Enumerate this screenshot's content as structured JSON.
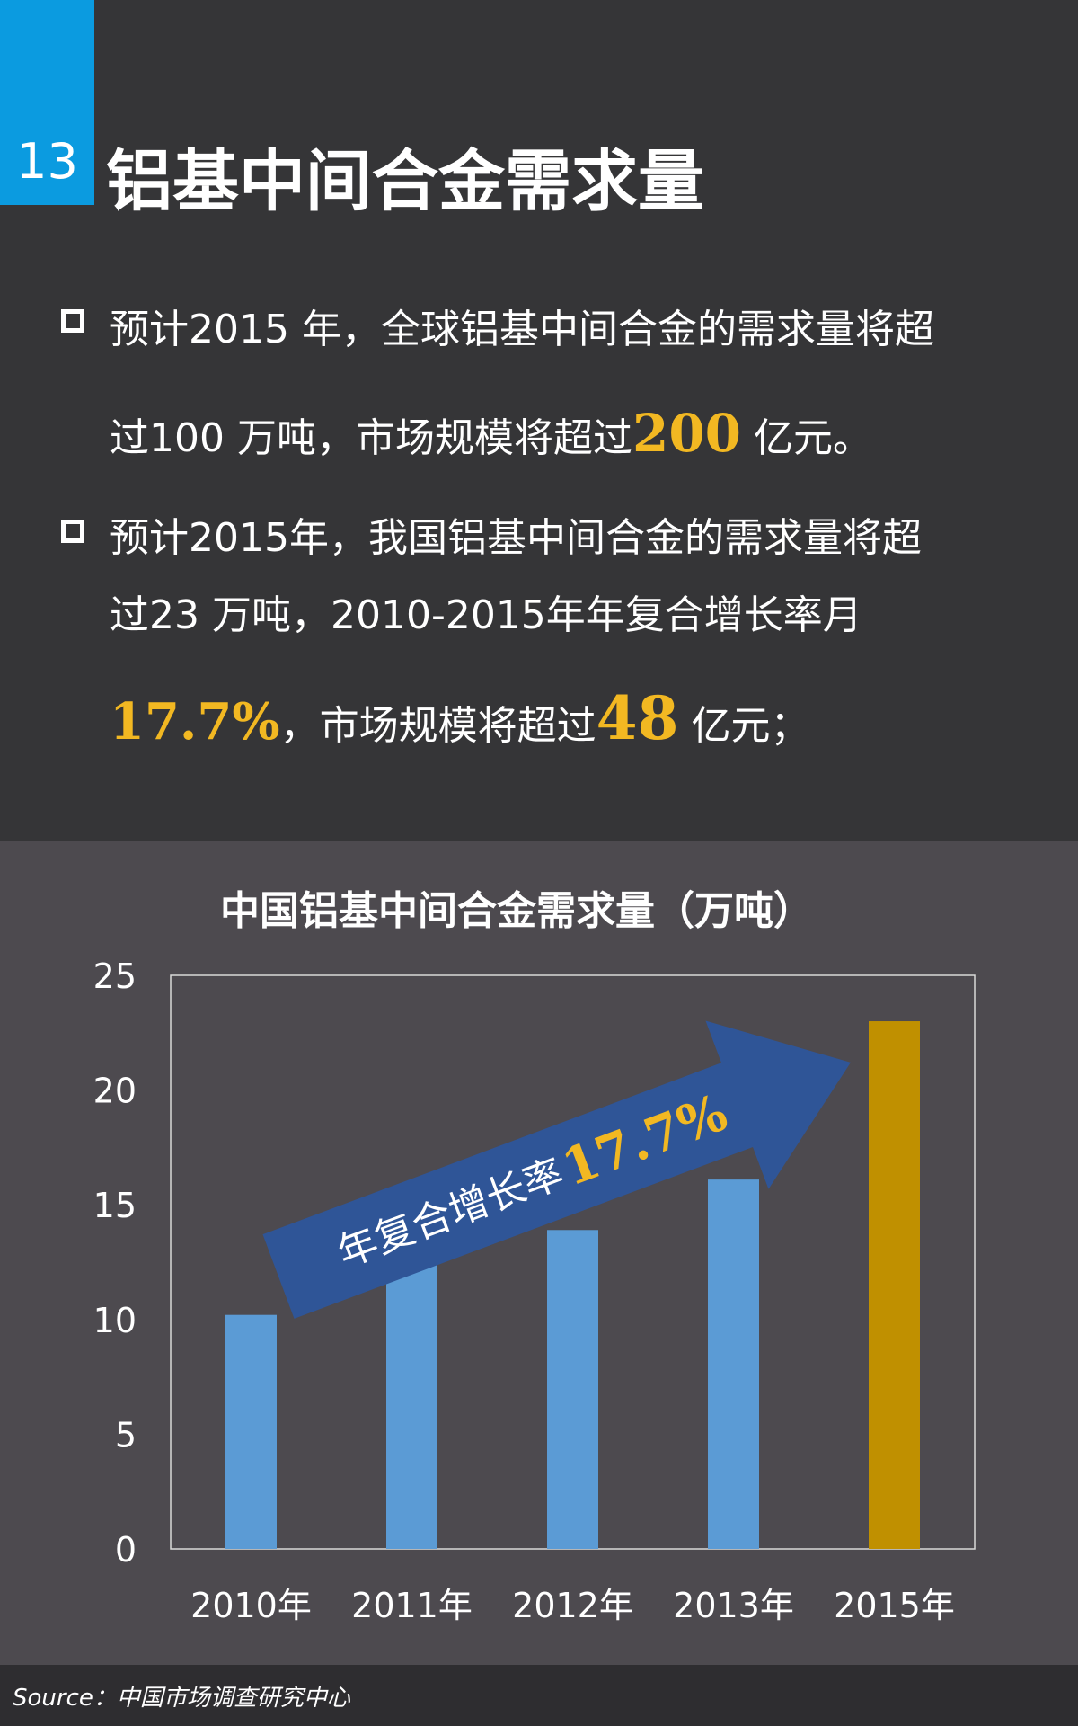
{
  "slide": {
    "number": "13",
    "title": "铝基中间合金需求量"
  },
  "bullets": [
    {
      "line1": "预计2015 年，全球铝基中间合金的需求量将超",
      "line2_pre": "过100 万吨，市场规模将超过",
      "line2_hl": "200",
      "line2_post": " 亿元。"
    },
    {
      "line1": "预计2015年，我国铝基中间合金的需求量将超",
      "line2": "过23 万吨，2010-2015年年复合增长率月",
      "line3_hl1": "17.7%",
      "line3_mid": "，市场规模将超过",
      "line3_hl2": "48",
      "line3_post": " 亿元；"
    }
  ],
  "arrow": {
    "label": "年复合增长率",
    "value": "17.7%"
  },
  "footer": {
    "source": "Source：中国市场调查研究中心"
  },
  "colors": {
    "accent_badge": "#0b9be0",
    "highlight": "#f2b822",
    "bar_blue": "#5b9bd5",
    "bar_gold": "#c09000",
    "arrow_fill": "#2f5597"
  },
  "chart_data": {
    "type": "bar",
    "title": "中国铝基中间合金需求量（万吨）",
    "categories": [
      "2010年",
      "2011年",
      "2012年",
      "2013年",
      "2015年"
    ],
    "values": [
      10.2,
      12.4,
      13.9,
      16.1,
      23.0
    ],
    "bar_colors": [
      "#5b9bd5",
      "#5b9bd5",
      "#5b9bd5",
      "#5b9bd5",
      "#c09000"
    ],
    "ylim": [
      0,
      25
    ],
    "yticks": [
      "0",
      "5",
      "10",
      "15",
      "20",
      "25"
    ],
    "grid": false,
    "xlabel": "",
    "ylabel": ""
  }
}
